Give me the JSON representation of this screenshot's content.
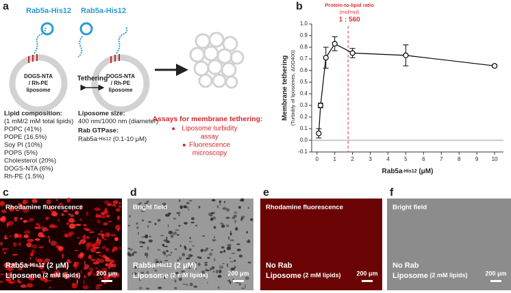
{
  "panel_labels": [
    "a",
    "b",
    "c",
    "d",
    "e",
    "f"
  ],
  "diagram": {
    "protein": [
      "Rab5a",
      "-His12"
    ],
    "liposome_label": [
      "DOGS-NTA",
      "/ Rh-PE",
      "liposome"
    ],
    "tethering": "Tethering",
    "lipid_composition": [
      "Lipid composition:",
      "(1 mM/2 mM total lipids)",
      "POPC (41%)",
      "POPE (16.5%)",
      "Soy PI (10%)",
      "POPS (5%)",
      "Cholesterol (20%)",
      "DOGS-NTA (6%)",
      "Rh-PE (1.5%)"
    ],
    "liposome_size": [
      "Liposome size:",
      "400 nm/1000 nm (diameter)"
    ],
    "rab_gtpase_title": "Rab GTPase:",
    "rab_gtpase": [
      "Rab5a",
      "-His12",
      " (0.1-10 μM)"
    ],
    "assays_title": "Assays for membrane tethering:",
    "assays": [
      [
        "Liposome turbidity",
        "assay"
      ],
      [
        "Fluorescence",
        "microscopy"
      ]
    ]
  },
  "chart_data": {
    "type": "scatter",
    "ylabel": "Membrane tethering",
    "ylabel_sub": "(Turbidity of liposomes, ΔOD400)",
    "xlabel": [
      "Rab5a",
      "-His12",
      " (μM)"
    ],
    "x": [
      0.1,
      0.2,
      0.5,
      1,
      2,
      5,
      10
    ],
    "values": [
      0.06,
      0.3,
      0.71,
      0.83,
      0.75,
      0.73,
      0.64
    ],
    "errors": [
      0.04,
      0.02,
      0.09,
      0.06,
      0.04,
      0.09,
      0.01
    ],
    "color": "#000000",
    "xlim": [
      -0.3,
      10.5
    ],
    "ylim": [
      -0.1,
      1.0
    ],
    "xticks": [
      0,
      1,
      2,
      3,
      4,
      5,
      6,
      7,
      8,
      9,
      10
    ],
    "yticks": [
      -0.1,
      {
        "value": 0,
        "label": "0.0"
      },
      0.1,
      0.2,
      0.3,
      0.4,
      0.5,
      0.6,
      0.7,
      0.8,
      0.9,
      {
        "value": 1,
        "label": "1.0"
      }
    ],
    "ratio_line": {
      "x": 1.75,
      "title": "Protein-to-lipid ratio",
      "unit": "(mol/mol)",
      "ratio": "1 : 560",
      "color": "#e03030"
    }
  },
  "micrographs": [
    {
      "mode": "Rhodamine fluorescence",
      "rab": [
        "Rab5a",
        "-His12",
        " (2 μM)"
      ],
      "liposome": [
        "Liposome",
        " (2 mM lipids)"
      ],
      "scale": "200 μm"
    },
    {
      "mode": "Bright field",
      "rab": [
        "Rab5a",
        "-His12",
        " (2 μM)"
      ],
      "liposome": [
        "Liposome",
        " (2 mM lipids)"
      ],
      "scale": "200 μm"
    },
    {
      "mode": "Rhodamine fluorescence",
      "rab": [
        "No Rab"
      ],
      "liposome": [
        "Liposome",
        " (2 mM lipids)"
      ],
      "scale": "200 μm"
    },
    {
      "mode": "Bright field",
      "rab": [
        "No Rab"
      ],
      "liposome": [
        "Liposome",
        " (2 mM lipids)"
      ],
      "scale": "200 μm"
    }
  ]
}
